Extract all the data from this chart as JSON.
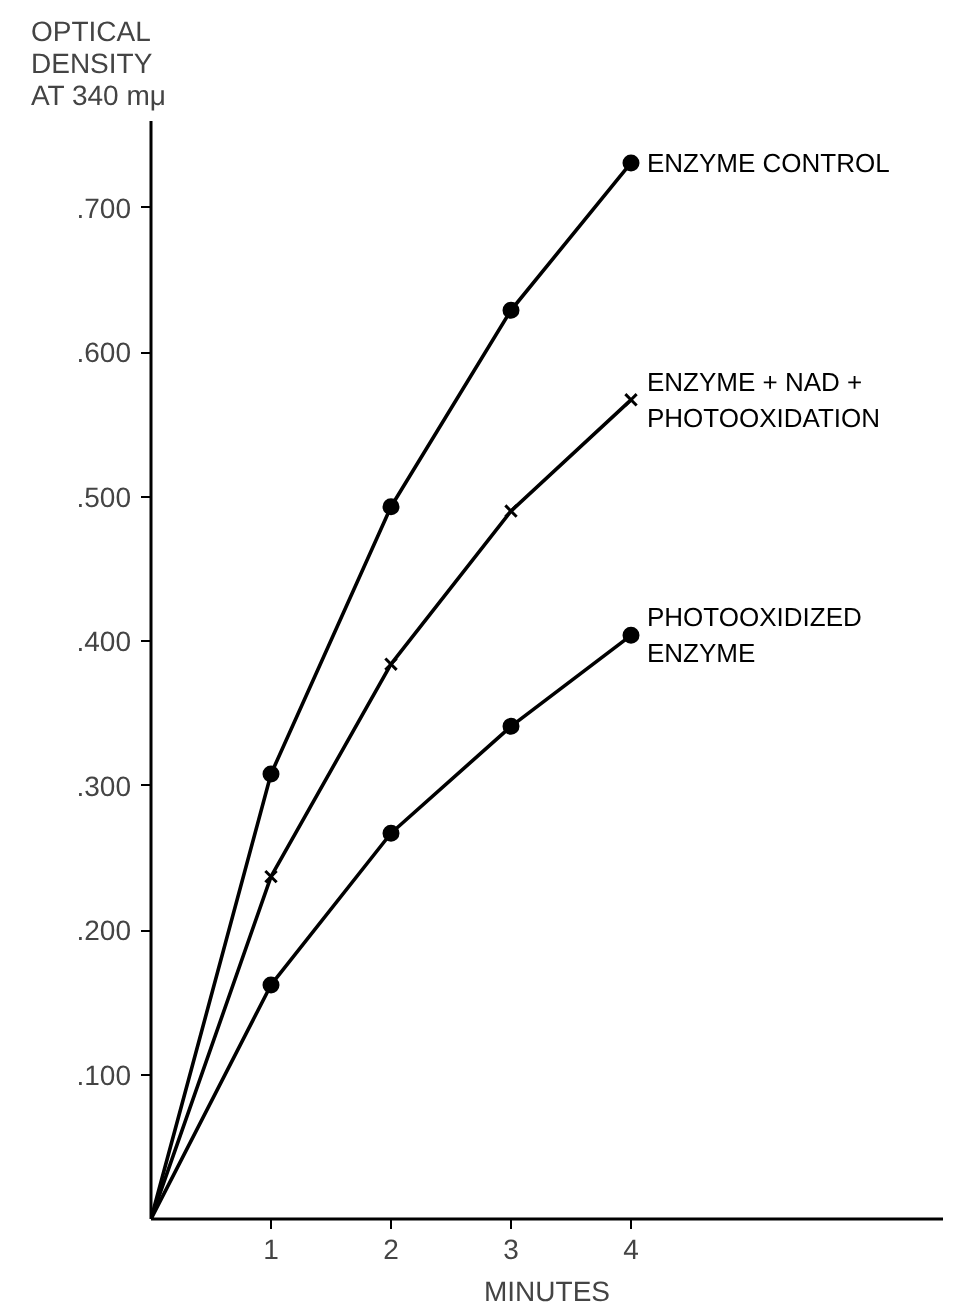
{
  "chart_data": {
    "type": "line",
    "xlabel": "MINUTES",
    "ylabel": "OPTICAL\nDENSITY\nAT 340 mμ",
    "x": [
      0,
      1,
      2,
      3,
      4
    ],
    "series": [
      {
        "name": "ENZYME CONTROL",
        "color": "#000000",
        "marker": "circle",
        "values": [
          0,
          0.308,
          0.493,
          0.629,
          0.731
        ]
      },
      {
        "name": "ENZYME + NAD +\nPHOTOOXIDATION",
        "color": "#000000",
        "marker": "cross",
        "values": [
          0,
          0.237,
          0.384,
          0.49,
          0.567
        ]
      },
      {
        "name": "PHOTOOXIDIZED\nENZYME",
        "color": "#000000",
        "marker": "circle",
        "values": [
          0,
          0.162,
          0.267,
          0.341,
          0.404
        ]
      }
    ],
    "xlim": [
      0,
      6.6
    ],
    "ylim": [
      0,
      0.76
    ],
    "xticks": [
      1,
      2,
      3,
      4
    ],
    "yticks": [
      {
        "value": 0.1,
        "label": ".100"
      },
      {
        "value": 0.2,
        "label": ".200"
      },
      {
        "value": 0.3,
        "label": ".300"
      },
      {
        "value": 0.4,
        "label": ".400"
      },
      {
        "value": 0.5,
        "label": ".500"
      },
      {
        "value": 0.6,
        "label": ".600"
      },
      {
        "value": 0.7,
        "label": ".700"
      }
    ],
    "grid": false
  }
}
